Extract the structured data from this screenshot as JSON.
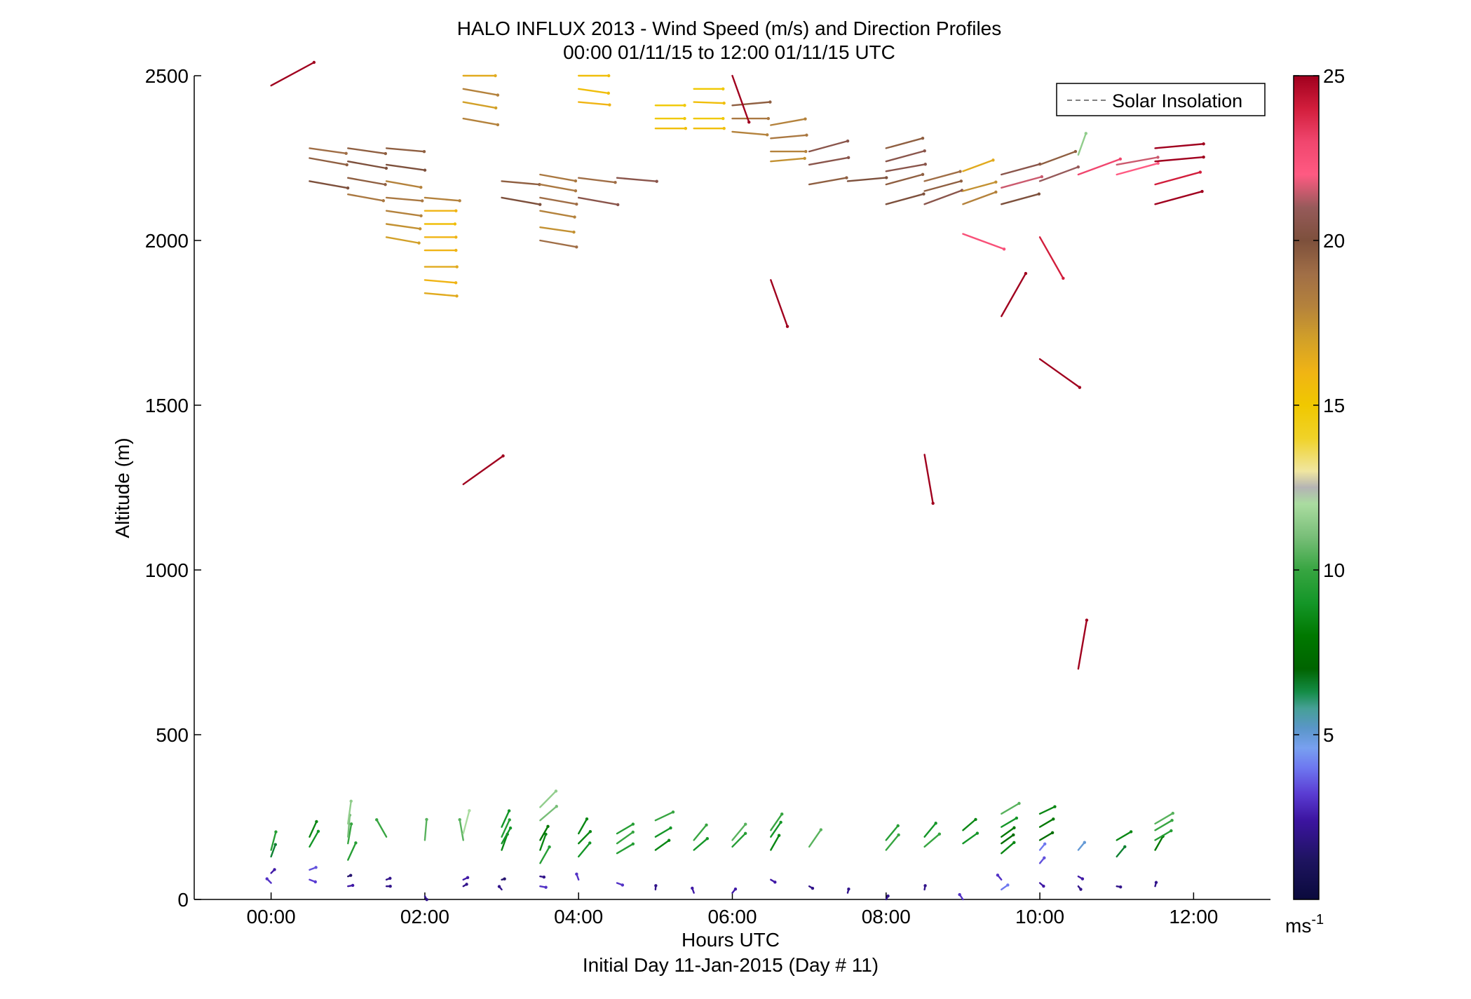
{
  "chart_data": {
    "type": "wind-barb-profile",
    "title": "HALO INFLUX 2013 - Wind Speed (m/s) and Direction Profiles",
    "subtitle": "00:00 01/11/15 to 12:00 01/11/15  UTC",
    "xlabel": "Hours UTC",
    "xlabel2": "Initial Day 11-Jan-2015 (Day # 11)",
    "ylabel": "Altitude (m)",
    "xlim": [
      -1.0,
      13.0
    ],
    "ylim": [
      0,
      2500
    ],
    "x_ticks": [
      0,
      2,
      4,
      6,
      8,
      10,
      12
    ],
    "x_tick_labels": [
      "00:00",
      "02:00",
      "04:00",
      "06:00",
      "08:00",
      "10:00",
      "12:00"
    ],
    "y_ticks": [
      0,
      500,
      1000,
      1500,
      2000,
      2500
    ],
    "y_tick_labels": [
      "0",
      "500",
      "1000",
      "1500",
      "2000",
      "2500"
    ],
    "legend": {
      "entries": [
        "Solar Insolation"
      ],
      "placement": "top-right",
      "line_style": "dashed",
      "line_color": "#808080"
    },
    "colorbar": {
      "ticks": [
        5,
        10,
        15,
        20,
        25
      ],
      "tick_labels": [
        "5",
        "10",
        "15",
        "20",
        "25"
      ],
      "range": [
        0,
        25
      ],
      "unit": "ms",
      "unit_exponent": "-1",
      "stops": [
        [
          0.0,
          "#0a0a3c"
        ],
        [
          1.2,
          "#1e1460"
        ],
        [
          2.4,
          "#3c14a0"
        ],
        [
          3.2,
          "#5a3cd2"
        ],
        [
          4.0,
          "#6e78f0"
        ],
        [
          4.6,
          "#78a0f0"
        ],
        [
          5.2,
          "#5a96c8"
        ],
        [
          5.8,
          "#46a096"
        ],
        [
          6.3,
          "#148c46"
        ],
        [
          7.0,
          "#006400"
        ],
        [
          8.0,
          "#007800"
        ],
        [
          9.0,
          "#149628"
        ],
        [
          10.0,
          "#37a541"
        ],
        [
          11.0,
          "#78be78"
        ],
        [
          12.0,
          "#aadca0"
        ],
        [
          12.5,
          "#b4b4b4"
        ],
        [
          13.0,
          "#f0e6a0"
        ],
        [
          14.0,
          "#f0d228"
        ],
        [
          15.0,
          "#f0c800"
        ],
        [
          16.0,
          "#f0b414"
        ],
        [
          17.0,
          "#d2a028"
        ],
        [
          18.0,
          "#b4823c"
        ],
        [
          19.0,
          "#a06e46"
        ],
        [
          20.0,
          "#7d503c"
        ],
        [
          21.0,
          "#965a5a"
        ],
        [
          22.0,
          "#ff5a82"
        ],
        [
          23.0,
          "#f0466e"
        ],
        [
          24.0,
          "#d21e3c"
        ],
        [
          25.0,
          "#a0001e"
        ]
      ]
    },
    "arrow_length_hours_per_ms": 0.0253,
    "arrow_length_m_per_ms": 6.0,
    "series": [
      {
        "time": 0.0,
        "obs": [
          [
            50,
            3.0,
            315
          ],
          [
            80,
            2.5,
            45
          ],
          [
            130,
            6.5,
            20
          ],
          [
            150,
            9.5,
            15
          ],
          [
            2470,
            25.0,
            62
          ]
        ]
      },
      {
        "time": 0.5,
        "obs": [
          [
            60,
            3.2,
            110
          ],
          [
            90,
            3.5,
            70
          ],
          [
            160,
            9.0,
            30
          ],
          [
            190,
            8.5,
            25
          ],
          [
            2180,
            20.0,
            100
          ],
          [
            2250,
            19.5,
            100
          ],
          [
            2280,
            19.0,
            98
          ]
        ]
      },
      {
        "time": 1.0,
        "obs": [
          [
            40,
            2.5,
            80
          ],
          [
            70,
            1.5,
            70
          ],
          [
            120,
            9.5,
            25
          ],
          [
            170,
            10.0,
            10
          ],
          [
            190,
            11.0,
            5
          ],
          [
            230,
            11.5,
            8
          ],
          [
            2140,
            18.5,
            100
          ],
          [
            2190,
            19.5,
            100
          ],
          [
            2240,
            20.0,
            100
          ],
          [
            2280,
            19.5,
            98
          ]
        ]
      },
      {
        "time": 1.5,
        "obs": [
          [
            40,
            2.0,
            90
          ],
          [
            60,
            2.0,
            70
          ],
          [
            190,
            10.0,
            330
          ],
          [
            2010,
            17.0,
            100
          ],
          [
            2050,
            17.5,
            98
          ],
          [
            2090,
            18.0,
            98
          ],
          [
            2130,
            18.5,
            95
          ],
          [
            2180,
            18.0,
            100
          ],
          [
            2230,
            20.0,
            98
          ],
          [
            2280,
            19.5,
            95
          ]
        ]
      },
      {
        "time": 2.0,
        "obs": [
          [
            10,
            2.0,
            150
          ],
          [
            180,
            10.5,
            5
          ],
          [
            1840,
            16.5,
            95
          ],
          [
            1880,
            16.0,
            95
          ],
          [
            1920,
            16.5,
            90
          ],
          [
            1970,
            16.0,
            90
          ],
          [
            2010,
            16.0,
            90
          ],
          [
            2050,
            15.5,
            90
          ],
          [
            2090,
            16.0,
            90
          ],
          [
            2130,
            18.0,
            95
          ]
        ]
      },
      {
        "time": 2.5,
        "obs": [
          [
            40,
            2.0,
            60
          ],
          [
            60,
            2.5,
            65
          ],
          [
            180,
            10.5,
            350
          ],
          [
            200,
            12.0,
            15
          ],
          [
            1260,
            25.0,
            55
          ],
          [
            2370,
            18.0,
            100
          ],
          [
            2420,
            17.0,
            100
          ],
          [
            2460,
            18.0,
            100
          ],
          [
            2500,
            16.5,
            90
          ]
        ]
      },
      {
        "time": 3.0,
        "obs": [
          [
            30,
            2.0,
            320
          ],
          [
            60,
            1.5,
            75
          ],
          [
            150,
            8.5,
            20
          ],
          [
            170,
            9.0,
            30
          ],
          [
            190,
            9.5,
            25
          ],
          [
            220,
            9.0,
            25
          ],
          [
            2130,
            20.0,
            100
          ],
          [
            2180,
            19.5,
            95
          ]
        ]
      },
      {
        "time": 3.5,
        "obs": [
          [
            40,
            3.0,
            100
          ],
          [
            70,
            2.0,
            100
          ],
          [
            110,
            9.5,
            30
          ],
          [
            150,
            8.5,
            20
          ],
          [
            180,
            8.0,
            30
          ],
          [
            240,
            11.0,
            50
          ],
          [
            280,
            11.5,
            45
          ],
          [
            2000,
            19.0,
            100
          ],
          [
            2040,
            17.5,
            98
          ],
          [
            2090,
            18.0,
            100
          ],
          [
            2130,
            19.0,
            100
          ],
          [
            2170,
            18.5,
            100
          ],
          [
            2200,
            18.5,
            100
          ]
        ]
      },
      {
        "time": 4.0,
        "obs": [
          [
            60,
            3.0,
            340
          ],
          [
            130,
            9.0,
            40
          ],
          [
            170,
            8.5,
            45
          ],
          [
            200,
            8.5,
            30
          ],
          [
            2130,
            20.5,
            100
          ],
          [
            2190,
            19.0,
            97
          ],
          [
            2420,
            16.0,
            95
          ],
          [
            2460,
            15.5,
            98
          ],
          [
            2500,
            15.5,
            90
          ]
        ]
      },
      {
        "time": 4.5,
        "obs": [
          [
            50,
            3.0,
            110
          ],
          [
            140,
            9.5,
            60
          ],
          [
            170,
            10.0,
            55
          ],
          [
            200,
            9.5,
            60
          ],
          [
            2190,
            20.5,
            95
          ]
        ]
      },
      {
        "time": 5.0,
        "obs": [
          [
            30,
            2.0,
            5
          ],
          [
            150,
            8.5,
            55
          ],
          [
            190,
            9.0,
            60
          ],
          [
            240,
            10.0,
            65
          ],
          [
            2340,
            15.5,
            90
          ],
          [
            2370,
            15.0,
            90
          ],
          [
            2410,
            15.0,
            90
          ]
        ]
      },
      {
        "time": 5.5,
        "obs": [
          [
            20,
            2.5,
            340
          ],
          [
            150,
            9.0,
            50
          ],
          [
            180,
            10.0,
            40
          ],
          [
            2340,
            15.5,
            90
          ],
          [
            2370,
            15.0,
            90
          ],
          [
            2420,
            15.5,
            92
          ],
          [
            2460,
            15.0,
            90
          ]
        ]
      },
      {
        "time": 6.0,
        "obs": [
          [
            20,
            2.5,
            40
          ],
          [
            160,
            9.5,
            45
          ],
          [
            180,
            10.5,
            40
          ],
          [
            2330,
            18.0,
            95
          ],
          [
            2370,
            18.5,
            90
          ],
          [
            2410,
            19.5,
            85
          ],
          [
            2500,
            25.0,
            160
          ]
        ]
      },
      {
        "time": 6.5,
        "obs": [
          [
            60,
            2.5,
            120
          ],
          [
            150,
            8.5,
            30
          ],
          [
            190,
            9.0,
            35
          ],
          [
            210,
            10.0,
            35
          ],
          [
            1880,
            25.0,
            160
          ],
          [
            2240,
            17.5,
            85
          ],
          [
            2270,
            18.0,
            90
          ],
          [
            2310,
            18.5,
            85
          ],
          [
            2350,
            18.0,
            80
          ]
        ]
      },
      {
        "time": 7.0,
        "obs": [
          [
            40,
            2.0,
            120
          ],
          [
            160,
            10.5,
            35
          ],
          [
            2170,
            19.5,
            80
          ],
          [
            2230,
            20.5,
            80
          ],
          [
            2270,
            20.5,
            75
          ]
        ]
      },
      {
        "time": 7.5,
        "obs": [
          [
            20,
            2.0,
            15
          ],
          [
            2180,
            20.0,
            85
          ]
        ]
      },
      {
        "time": 8.0,
        "obs": [
          [
            0,
            2.0,
            30
          ],
          [
            150,
            10.0,
            40
          ],
          [
            180,
            9.5,
            40
          ],
          [
            2110,
            20.0,
            75
          ],
          [
            2170,
            19.5,
            75
          ],
          [
            2210,
            20.5,
            80
          ],
          [
            2240,
            20.5,
            75
          ],
          [
            2280,
            19.5,
            75
          ]
        ]
      },
      {
        "time": 8.5,
        "obs": [
          [
            30,
            2.0,
            10
          ],
          [
            160,
            10.0,
            50
          ],
          [
            190,
            9.0,
            40
          ],
          [
            1350,
            25.0,
            170
          ],
          [
            2110,
            20.5,
            70
          ],
          [
            2150,
            19.5,
            75
          ],
          [
            2180,
            19.0,
            75
          ]
        ]
      },
      {
        "time": 9.0,
        "obs": [
          [
            0,
            3.0,
            325
          ],
          [
            170,
            9.0,
            55
          ],
          [
            210,
            8.5,
            50
          ],
          [
            2020,
            22.5,
            110
          ],
          [
            2110,
            18.0,
            70
          ],
          [
            2150,
            17.5,
            75
          ],
          [
            2210,
            16.5,
            70
          ]
        ]
      },
      {
        "time": 9.5,
        "obs": [
          [
            30,
            4.0,
            55
          ],
          [
            60,
            3.0,
            320
          ],
          [
            140,
            8.5,
            50
          ],
          [
            170,
            7.5,
            55
          ],
          [
            190,
            8.0,
            55
          ],
          [
            220,
            9.0,
            60
          ],
          [
            260,
            10.5,
            60
          ],
          [
            1770,
            25.0,
            30
          ],
          [
            2110,
            20.0,
            75
          ],
          [
            2160,
            21.5,
            75
          ],
          [
            2200,
            20.5,
            75
          ]
        ]
      },
      {
        "time": 10.0,
        "obs": [
          [
            50,
            2.5,
            130
          ],
          [
            110,
            3.5,
            40
          ],
          [
            150,
            4.0,
            40
          ],
          [
            180,
            7.5,
            60
          ],
          [
            220,
            8.0,
            60
          ],
          [
            260,
            8.5,
            65
          ],
          [
            1640,
            25.0,
            125
          ],
          [
            2010,
            24.0,
            150
          ],
          [
            2180,
            21.0,
            70
          ],
          [
            2230,
            19.5,
            70
          ]
        ]
      },
      {
        "time": 10.5,
        "obs": [
          [
            40,
            2.0,
            140
          ],
          [
            70,
            2.5,
            120
          ],
          [
            150,
            5.0,
            40
          ],
          [
            700,
            25.0,
            10
          ],
          [
            2200,
            23.0,
            70
          ],
          [
            2260,
            11.5,
            20
          ]
        ]
      },
      {
        "time": 11.0,
        "obs": [
          [
            40,
            2.0,
            100
          ],
          [
            130,
            6.5,
            40
          ],
          [
            180,
            8.5,
            60
          ],
          [
            2200,
            22.0,
            75
          ],
          [
            2230,
            21.5,
            80
          ]
        ]
      },
      {
        "time": 11.5,
        "obs": [
          [
            40,
            2.0,
            15
          ],
          [
            150,
            8.0,
            30
          ],
          [
            180,
            9.5,
            60
          ],
          [
            210,
            10.0,
            60
          ],
          [
            230,
            10.5,
            60
          ],
          [
            2110,
            25.0,
            75
          ],
          [
            2170,
            24.0,
            75
          ],
          [
            2240,
            25.0,
            85
          ],
          [
            2280,
            25.0,
            85
          ]
        ]
      }
    ]
  }
}
